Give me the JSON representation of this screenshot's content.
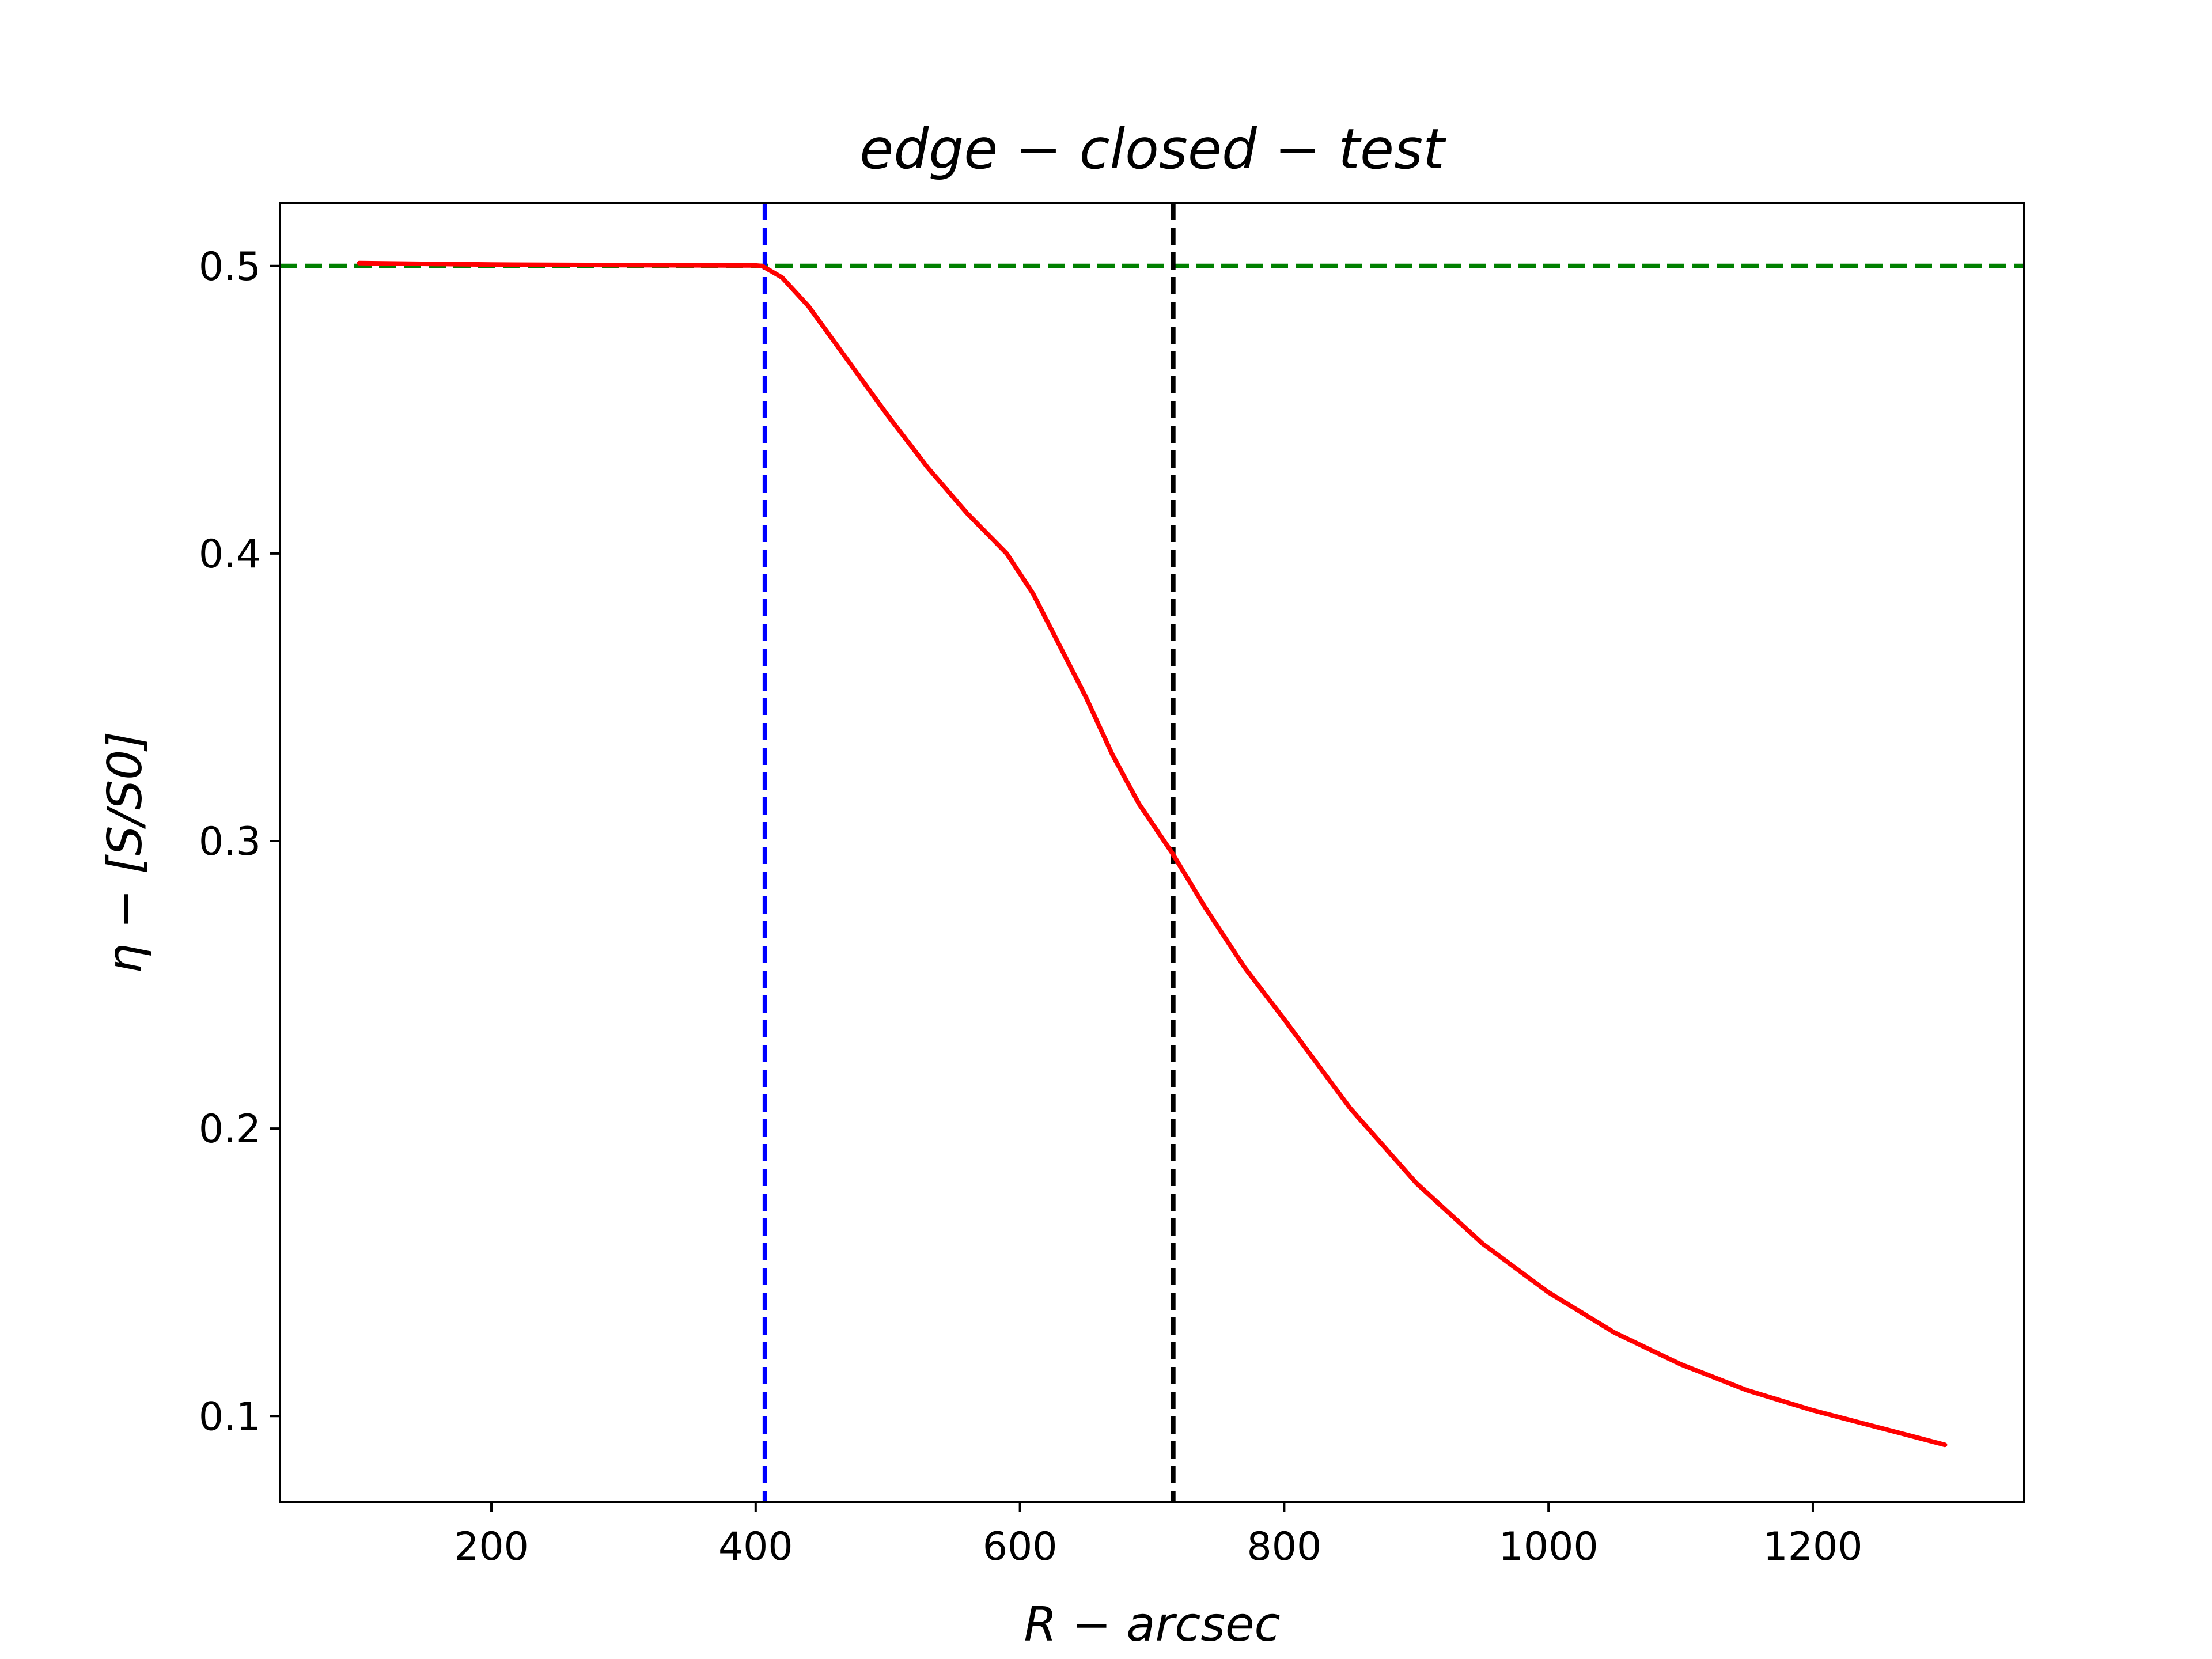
{
  "chart_data": {
    "type": "line",
    "title": "edge − closed − test",
    "xlabel": "R − arcsec",
    "ylabel": "η − [S/S0]",
    "xlim": [
      40,
      1360
    ],
    "ylim": [
      0.07,
      0.522
    ],
    "xticks": [
      200,
      400,
      600,
      800,
      1000,
      1200
    ],
    "yticks": [
      0.1,
      0.2,
      0.3,
      0.4,
      0.5
    ],
    "ytick_labels": [
      "0.1",
      "0.2",
      "0.3",
      "0.4",
      "0.5"
    ],
    "grid": false,
    "series": [
      {
        "color": "#ff0000",
        "style": "solid",
        "x": [
          100,
          200,
          300,
          400,
          405,
          420,
          440,
          470,
          500,
          530,
          560,
          590,
          610,
          630,
          650,
          670,
          690,
          715,
          740,
          770,
          800,
          850,
          900,
          950,
          1000,
          1050,
          1100,
          1150,
          1200,
          1250,
          1300
        ],
        "y": [
          0.501,
          0.5005,
          0.5003,
          0.5002,
          0.5,
          0.496,
          0.486,
          0.467,
          0.448,
          0.43,
          0.414,
          0.4,
          0.386,
          0.368,
          0.35,
          0.33,
          0.313,
          0.296,
          0.277,
          0.256,
          0.238,
          0.207,
          0.181,
          0.16,
          0.143,
          0.129,
          0.118,
          0.109,
          0.102,
          0.096,
          0.09
        ]
      }
    ],
    "reference_lines": [
      {
        "orientation": "horizontal",
        "value": 0.5,
        "color": "#008000",
        "style": "dashed"
      },
      {
        "orientation": "vertical",
        "value": 407,
        "color": "#0000ff",
        "style": "dashed"
      },
      {
        "orientation": "vertical",
        "value": 716,
        "color": "#000000",
        "style": "dashed"
      }
    ]
  }
}
